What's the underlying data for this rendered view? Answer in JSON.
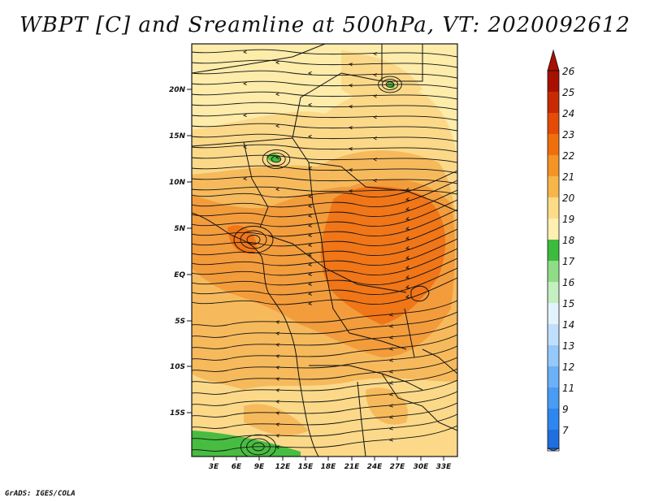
{
  "title": "WBPT [C] and Sreamline at 500hPa, VT: 2020092612",
  "credit": "GrADS: IGES/COLA",
  "lat_labels": [
    "20N",
    "15N",
    "10N",
    "5N",
    "EQ",
    "5S",
    "10S",
    "15S"
  ],
  "lon_labels": [
    "3E",
    "6E",
    "9E",
    "12E",
    "15E",
    "18E",
    "21E",
    "24E",
    "27E",
    "30E",
    "33E"
  ],
  "colorbar": {
    "labels": [
      "7",
      "9",
      "11",
      "12",
      "13",
      "14",
      "15",
      "16",
      "17",
      "18",
      "19",
      "20",
      "21",
      "22",
      "23",
      "24",
      "25",
      "26"
    ],
    "colors": [
      "#1f6fe0",
      "#2e86ef",
      "#4a9bf4",
      "#6cb1f7",
      "#95c9fb",
      "#bfe0fd",
      "#e3f3fe",
      "#c4efc0",
      "#8fdc87",
      "#3dbb3d",
      "#fdf0b0",
      "#fcdc87",
      "#f7b64a",
      "#f39424",
      "#ef6f0e",
      "#e34b06",
      "#c82a03",
      "#a81000"
    ]
  },
  "field_colors": {
    "c18": "#3dbb3d",
    "c19": "#fdecaa",
    "c20": "#fbd887",
    "c21": "#f6b85a",
    "c22": "#f29a3a",
    "c23": "#ef7416"
  }
}
